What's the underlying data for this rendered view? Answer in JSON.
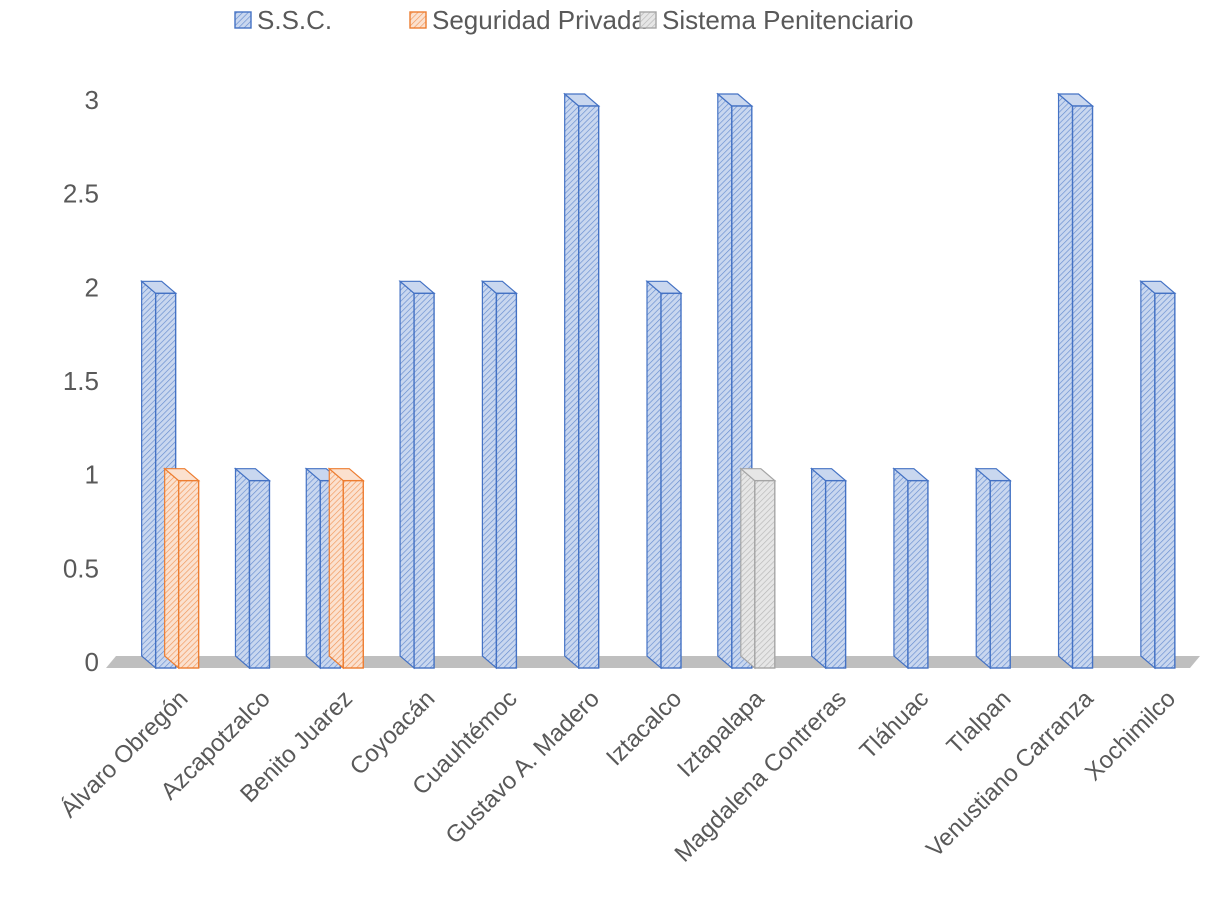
{
  "chart_data": {
    "type": "bar",
    "categories": [
      "Álvaro Obregón",
      "Azcapotzalco",
      "Benito Juarez",
      "Coyoacán",
      "Cuauhtémoc",
      "Gustavo A. Madero",
      "Iztacalco",
      "Iztapalapa",
      "Magdalena Contreras",
      "Tláhuac",
      "Tlalpan",
      "Venustiano Carranza",
      "Xochimilco"
    ],
    "series": [
      {
        "name": "S.S.C.",
        "values": [
          2,
          1,
          1,
          2,
          2,
          3,
          2,
          3,
          1,
          1,
          1,
          3,
          2
        ],
        "color": "#4472C4",
        "fill": "#C9D7EF"
      },
      {
        "name": "Seguridad Privada",
        "values": [
          1,
          0,
          1,
          0,
          0,
          0,
          0,
          0,
          0,
          0,
          0,
          0,
          0
        ],
        "color": "#ED7D31",
        "fill": "#FBE1CF"
      },
      {
        "name": "Sistema Penitenciario",
        "values": [
          0,
          0,
          0,
          0,
          0,
          0,
          0,
          1,
          0,
          0,
          0,
          0,
          0
        ],
        "color": "#A5A5A5",
        "fill": "#E6E6E6"
      }
    ],
    "yticks": [
      "0",
      "0.5",
      "1",
      "1.5",
      "2",
      "2.5",
      "3"
    ],
    "ylim": [
      0,
      3
    ],
    "grid": false,
    "legend_position": "top",
    "pattern": "diagonal-hatch",
    "style": "3d-column"
  }
}
